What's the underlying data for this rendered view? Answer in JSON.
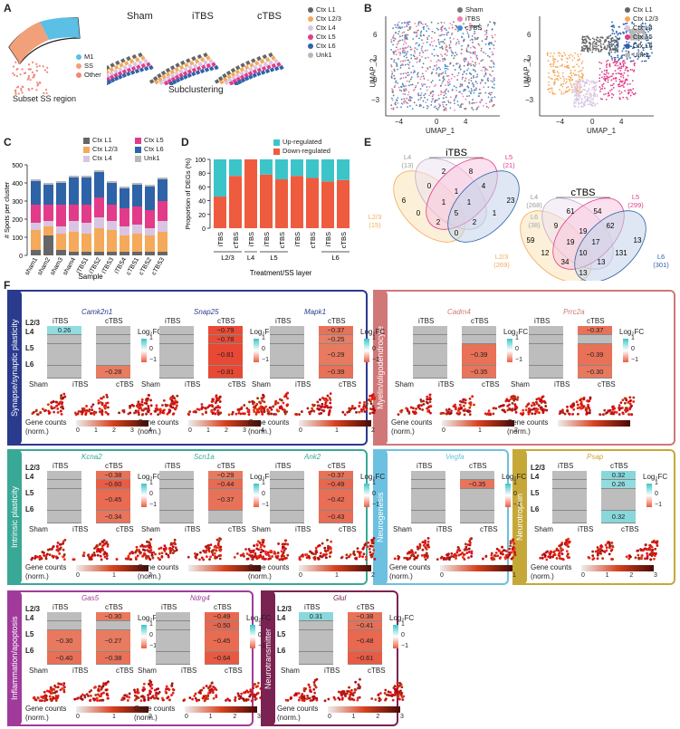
{
  "colors": {
    "L1": "#666666",
    "L23": "#f5a95a",
    "L4": "#d9c5e3",
    "L5": "#e23b8a",
    "L6": "#2e63a8",
    "Unk1": "#b8b8b8",
    "sham": "#777777",
    "itbs": "#f07fb0",
    "ctbs": "#3b8fd6",
    "up": "#3cc5c9",
    "down": "#ef5b3f",
    "synapse": "#2a3a8c",
    "myelin": "#d07878",
    "intrinsic": "#3aa896",
    "neurogenesis": "#6cc0e0",
    "neurotrophin": "#c6a838",
    "inflammation": "#a03b9c",
    "neurotransmitter": "#7a2252"
  },
  "panelA": {
    "label": "A",
    "legend": [
      "M1",
      "SS",
      "Other"
    ],
    "subset_caption": "Subset SS region",
    "sub_caption": "Subclustering",
    "groups": [
      "Sham",
      "iTBS",
      "cTBS"
    ],
    "layer_legend": [
      "Ctx L1",
      "Ctx L2/3",
      "Ctx L4",
      "Ctx L5",
      "Ctx L6",
      "Unk1"
    ]
  },
  "panelB": {
    "label": "B",
    "legend1": [
      "Sham",
      "iTBS",
      "cTBS"
    ],
    "legend2": [
      "Ctx L1",
      "Ctx L2/3",
      "Ctx L4",
      "Ctx L5",
      "Ctx L6",
      "Unk1"
    ],
    "xlabel": "UMAP_1",
    "ylabel": "UMAP_2",
    "xticks": [
      "−4",
      "0",
      "4"
    ],
    "yticks": [
      "6",
      "3",
      "0",
      "−3"
    ]
  },
  "chart_data": [
    {
      "type": "bar",
      "title": "Spots per cluster by sample",
      "ylabel": "# Spots per cluster",
      "xlabel": "Sample",
      "ylim": [
        0,
        500
      ],
      "yticks": [
        "0",
        "100",
        "200",
        "300",
        "400",
        "500"
      ],
      "categories": [
        "sham1",
        "sham2",
        "sham3",
        "sham4",
        "iTBS1",
        "iTBS2",
        "iTBS3",
        "iTBS4",
        "cTBS1",
        "cTBS2",
        "cTBS3"
      ],
      "series": [
        {
          "name": "Ctx L1",
          "values": [
            30,
            110,
            30,
            20,
            20,
            20,
            20,
            20,
            20,
            20,
            20
          ]
        },
        {
          "name": "Ctx L2/3",
          "values": [
            110,
            50,
            90,
            110,
            100,
            130,
            120,
            90,
            100,
            90,
            110
          ]
        },
        {
          "name": "Ctx L4",
          "values": [
            40,
            30,
            40,
            60,
            60,
            60,
            50,
            50,
            50,
            40,
            60
          ]
        },
        {
          "name": "Ctx L5",
          "values": [
            100,
            90,
            120,
            90,
            100,
            110,
            90,
            100,
            100,
            100,
            110
          ]
        },
        {
          "name": "Ctx L6",
          "values": [
            130,
            110,
            120,
            150,
            150,
            140,
            120,
            110,
            120,
            130,
            120
          ]
        },
        {
          "name": "Unk1",
          "values": [
            10,
            10,
            10,
            10,
            10,
            10,
            10,
            10,
            10,
            10,
            10
          ]
        }
      ]
    },
    {
      "type": "bar",
      "title": "Proportion of DEGs",
      "ylabel": "Proportion of DEGs (%)",
      "xlabel": "Treatment/SS layer",
      "ylim": [
        0,
        100
      ],
      "yticks": [
        "0",
        "20",
        "40",
        "60",
        "80",
        "100"
      ],
      "categories": [
        "iTBS",
        "cTBS",
        "iTBS",
        "iTBS",
        "cTBS",
        "iTBS",
        "cTBS",
        "iTBS",
        "cTBS"
      ],
      "groups": [
        "L2/3",
        "L4",
        "L5",
        "L6"
      ],
      "series": [
        {
          "name": "Down-regulated",
          "values": [
            46,
            76,
            100,
            78,
            71,
            76,
            73,
            68,
            70
          ]
        },
        {
          "name": "Up-regulated",
          "values": [
            54,
            24,
            0,
            22,
            29,
            24,
            27,
            32,
            30
          ]
        }
      ]
    }
  ],
  "panelC": {
    "label": "C",
    "legend": [
      "Ctx L1",
      "Ctx L2/3",
      "Ctx L4",
      "Ctx L5",
      "Ctx L6",
      "Unk1"
    ]
  },
  "panelD": {
    "label": "D",
    "legend": [
      "Up-regulated",
      "Down-regulated"
    ]
  },
  "panelE": {
    "label": "E",
    "itbs": {
      "title": "iTBS",
      "sets": [
        "L4\n(13)",
        "L5\n(21)",
        "L2/3\n(15)",
        "L6\n(38)"
      ],
      "nums": [
        "2",
        "8",
        "6",
        "0",
        "1",
        "4",
        "23",
        "0",
        "1",
        "1",
        "1",
        "5",
        "2",
        "2",
        "0"
      ]
    },
    "ctbs": {
      "title": "cTBS",
      "sets": [
        "L4\n(268)",
        "L5\n(299)",
        "L2/3\n(269)",
        "L6\n(301)"
      ],
      "nums": [
        "61",
        "54",
        "59",
        "9",
        "19",
        "62",
        "13",
        "12",
        "19",
        "17",
        "131",
        "10",
        "34",
        "13",
        "13"
      ]
    }
  },
  "panelF": {
    "label": "F",
    "log2fc": "Log₂FC",
    "scale_ticks": [
      "1",
      "0",
      "−1"
    ],
    "layers": [
      "L2/3",
      "L4",
      "L5",
      "L6"
    ],
    "col_itbs": "iTBS",
    "col_ctbs": "cTBS",
    "map_groups": [
      "Sham",
      "iTBS",
      "cTBS"
    ],
    "gene_counts": "Gene counts",
    "norm": "(norm.)",
    "boxes": {
      "synapse": {
        "title": "Synapse/synaptic plasticity",
        "genes": [
          "Camk2n1",
          "Snap25",
          "Mapk1"
        ],
        "ticks": [
          [
            "0",
            "1",
            "2",
            "3",
            "4"
          ],
          [
            "0",
            "1",
            "2",
            "3",
            "4"
          ],
          [
            "0",
            "1",
            "2"
          ]
        ]
      },
      "myelin": {
        "title": "Myelin/oligodendrocyte",
        "genes": [
          "Cadm4",
          "Prrc2a"
        ],
        "ticks": [
          [
            "0",
            "1",
            "2"
          ]
        ]
      },
      "intrinsic": {
        "title": "Intrinsic plasticity",
        "genes": [
          "Kcna2",
          "Scn1a",
          "Ank2"
        ],
        "ticks": [
          [
            "0",
            "1",
            "2"
          ]
        ]
      },
      "neurogenesis": {
        "title": "Neurogenesis",
        "genes": [
          "Vegfa"
        ],
        "ticks": [
          [
            "0",
            "1"
          ]
        ]
      },
      "neurotrophin": {
        "title": "Neurotrophin",
        "genes": [
          "Psap"
        ],
        "ticks": [
          [
            "0",
            "1",
            "2",
            "3"
          ]
        ]
      },
      "inflammation": {
        "title": "Inflammation/apoptosis",
        "genes": [
          "Gas5",
          "Ndrg4"
        ],
        "ticks": [
          [
            "0",
            "1",
            "2"
          ],
          [
            "0",
            "1",
            "2",
            "3"
          ]
        ]
      },
      "neurotransmitter": {
        "title": "Neurotransmitter",
        "genes": [
          "Glul"
        ],
        "ticks": [
          [
            "0",
            "1",
            "2",
            "3"
          ]
        ]
      }
    },
    "heatvals": {
      "Camk2n1": {
        "itbs": [
          "0.26",
          "",
          "",
          ""
        ],
        "ctbs": [
          "",
          "",
          "",
          "−0.28"
        ]
      },
      "Snap25": {
        "itbs": [
          "",
          "",
          "",
          ""
        ],
        "ctbs": [
          "−0.79",
          "−0.78",
          "−0.81",
          "−0.81"
        ]
      },
      "Mapk1": {
        "itbs": [
          "",
          "",
          "",
          ""
        ],
        "ctbs": [
          "−0.37",
          "−0.25",
          "−0.29",
          "−0.39"
        ]
      },
      "Cadm4": {
        "itbs": [
          "",
          "",
          "",
          ""
        ],
        "ctbs": [
          "",
          "",
          "−0.39",
          "−0.35"
        ]
      },
      "Prrc2a": {
        "itbs": [
          "",
          "",
          "",
          ""
        ],
        "ctbs": [
          "−0.37",
          "",
          "−0.39",
          "−0.30"
        ]
      },
      "Kcna2": {
        "itbs": [
          "",
          "",
          "",
          ""
        ],
        "ctbs": [
          "−0.38",
          "−0.60",
          "−0.45",
          "−0.34"
        ]
      },
      "Scn1a": {
        "itbs": [
          "",
          "",
          "",
          ""
        ],
        "ctbs": [
          "−0.29",
          "−0.44",
          "−0.37",
          ""
        ]
      },
      "Ank2": {
        "itbs": [
          "",
          "",
          "",
          ""
        ],
        "ctbs": [
          "−0.37",
          "−0.49",
          "−0.42",
          "−0.43"
        ]
      },
      "Vegfa": {
        "itbs": [
          "",
          "",
          "",
          ""
        ],
        "ctbs": [
          "",
          "−0.35",
          "",
          ""
        ]
      },
      "Psap": {
        "itbs": [
          "",
          "",
          "",
          ""
        ],
        "ctbs": [
          "0.32",
          "0.26",
          "",
          "0.32"
        ]
      },
      "Gas5": {
        "itbs": [
          "",
          "",
          "−0.30",
          "−0.40"
        ],
        "ctbs": [
          "−0.30",
          "",
          "−0.27",
          "−0.38"
        ]
      },
      "Ndrg4": {
        "itbs": [
          "",
          "",
          "",
          ""
        ],
        "ctbs": [
          "−0.49",
          "−0.50",
          "−0.45",
          "−0.64"
        ]
      },
      "Glul": {
        "itbs": [
          "0.31",
          "",
          "",
          ""
        ],
        "ctbs": [
          "−0.38",
          "−0.41",
          "−0.48",
          "−0.61"
        ]
      }
    }
  }
}
